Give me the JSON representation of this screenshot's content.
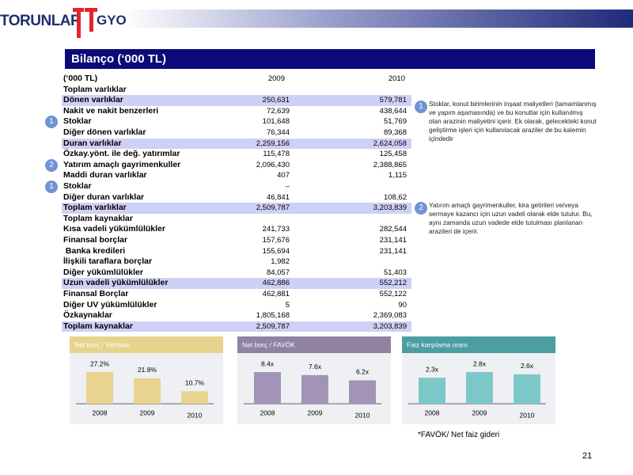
{
  "header": {
    "logo_left": "TORUNLAR",
    "logo_right": "GYO"
  },
  "title": "Bilanço (‘000 TL)",
  "table": {
    "columns": [
      "(‘000 TL)",
      "2009",
      "2010"
    ],
    "highlight_color": "#cfd0f5",
    "rows": [
      {
        "label": "Toplam varlıklar",
        "values": [
          null,
          null
        ]
      },
      {
        "label": "Dönen varlıklar",
        "values": [
          "250,631",
          "579,781"
        ],
        "highlight": true
      },
      {
        "label": "Nakit ve nakit benzerleri",
        "values": [
          "72,639",
          "438,644"
        ]
      },
      {
        "label": "Stoklar",
        "values": [
          "101,648",
          "51,769"
        ],
        "note": "1"
      },
      {
        "label": "Diğer dönen varlıklar",
        "values": [
          "76,344",
          "89,368"
        ]
      },
      {
        "label": "Duran varlıklar",
        "values": [
          "2,259,156",
          "2,624,058"
        ],
        "highlight": true
      },
      {
        "label": "Özkay.yönt. ile değ. yatırımlar",
        "values": [
          "115,478",
          "125,458"
        ]
      },
      {
        "label": "Yatırım amaçlı gayrimenkuller",
        "values": [
          "2,096,430",
          "2,388,865"
        ],
        "note": "2"
      },
      {
        "label": "Maddi duran varlıklar",
        "values": [
          "407",
          "1,115"
        ]
      },
      {
        "label": "Stoklar",
        "values": [
          "–",
          null
        ],
        "note": "1"
      },
      {
        "label": "Diğer duran varlıklar",
        "values": [
          "46,841",
          "108,62"
        ]
      },
      {
        "label": "Toplam varlıklar",
        "values": [
          "2,509,787",
          "3,203,839"
        ],
        "highlight": true
      },
      {
        "label": "Toplam kaynaklar",
        "values": [
          null,
          null
        ]
      },
      {
        "label": "Kısa vadeli yükümlülükler",
        "values": [
          "241,733",
          "282,544"
        ]
      },
      {
        "label": "Finansal borçlar",
        "values": [
          "157,676",
          "231,141"
        ]
      },
      {
        "label": " Banka kredileri",
        "values": [
          "155,694",
          "231,141"
        ]
      },
      {
        "label": "İlişkili taraflara borçlar",
        "values": [
          "1,982",
          null
        ]
      },
      {
        "label": "Diğer yükümlülükler",
        "values": [
          "84,057",
          "51,403"
        ]
      },
      {
        "label": "Uzun vadeli yükümlülükler",
        "values": [
          "462,886",
          "552,212"
        ],
        "highlight": true
      },
      {
        "label": "Finansal Borçlar",
        "values": [
          "462,881",
          "552,122"
        ]
      },
      {
        "label": "Diğer UV yükümlülükler",
        "values": [
          "5",
          "90"
        ]
      },
      {
        "label": "Özkaynaklar",
        "values": [
          "1,805,168",
          "2,369,083"
        ]
      },
      {
        "label": "Toplam kaynaklar",
        "values": [
          "2,509,787",
          "3,203,839"
        ],
        "highlight": true
      }
    ]
  },
  "notes": [
    {
      "number": "1",
      "text": "Stoklar, konut birimlerinin inşaat maliyetleri (tamamlanmış ve yapım aşamasında) ve bu konutlar için kullanılmış olan arazinin maliyetini içerir. Ek olarak, gelecekteki konut geliştirme işleri için kullanılacak araziler de bu kalemin içindedir"
    },
    {
      "number": "2",
      "text": "Yatırım amaçlı gayrimenkuller, kira getirileri ve/veya sermaye kazancı için uzun vadeli olarak elde tutulur. Bu, aynı zamanda uzun vadede elde tutulması planlanan arazileri de içerir."
    }
  ],
  "chart_data": [
    {
      "type": "bar",
      "title": "Net borç / Varlıklar",
      "categories": [
        "2008",
        "2009",
        "2010"
      ],
      "values": [
        27.2,
        21.8,
        10.7
      ],
      "value_labels": [
        "27.2%",
        "21.8%",
        "10.7%"
      ],
      "color": "#e8d490",
      "title_color": "#e6d48c"
    },
    {
      "type": "bar",
      "title": "Net borç / FAVÖK",
      "categories": [
        "2008",
        "2009",
        "2010"
      ],
      "values": [
        8.4,
        7.6,
        6.2
      ],
      "value_labels": [
        "8.4x",
        "7.6x",
        "6.2x"
      ],
      "color": "#a294b6",
      "title_color": "#8f82a3"
    },
    {
      "type": "bar",
      "title": "Faiz karşılama oranı",
      "categories": [
        "2008",
        "2009",
        "2010"
      ],
      "values": [
        2.3,
        2.8,
        2.6
      ],
      "value_labels": [
        "2.3x",
        "2.8x",
        "2.6x"
      ],
      "color": "#7cc8c8",
      "title_color": "#4b9ea2"
    }
  ],
  "footnote": "*FAVÖK/ Net faiz gideri",
  "page_number": "21"
}
